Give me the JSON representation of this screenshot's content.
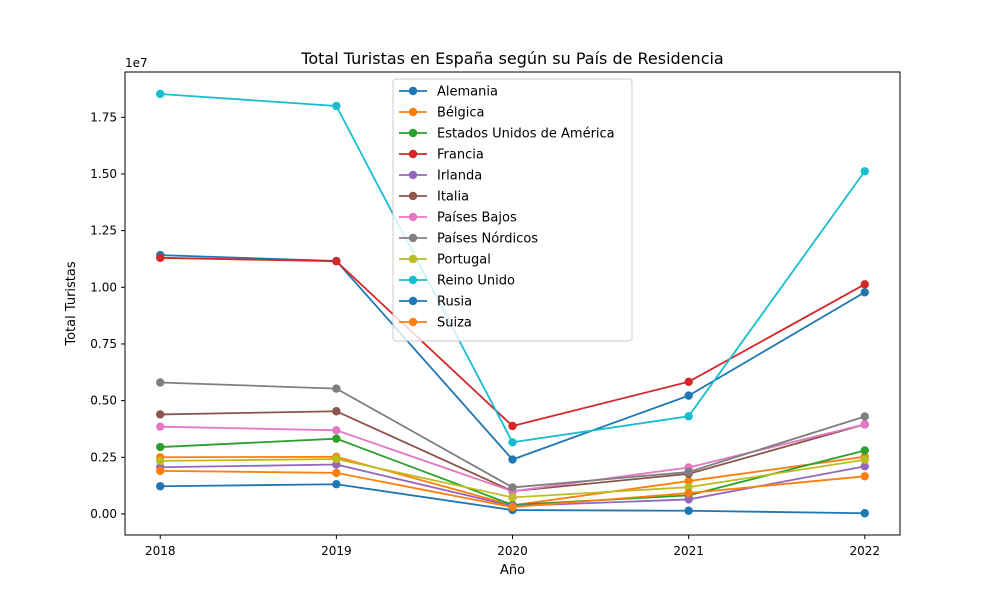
{
  "chart_data": {
    "type": "line",
    "title": "Total Turistas en España según su País de Residencia",
    "xlabel": "Año",
    "ylabel": "Total Turistas",
    "y_offset_label": "1e7",
    "x": [
      2018,
      2019,
      2020,
      2021,
      2022
    ],
    "x_tick_labels": [
      "2018",
      "2019",
      "2020",
      "2021",
      "2022"
    ],
    "y_ticks": [
      0,
      0.25,
      0.5,
      0.75,
      1.0,
      1.25,
      1.5,
      1.75
    ],
    "y_tick_labels": [
      "0.00",
      "0.25",
      "0.50",
      "0.75",
      "1.00",
      "1.25",
      "1.50",
      "1.75"
    ],
    "ylim": [
      -0.093,
      1.95
    ],
    "xlim": [
      2017.8,
      2022.2
    ],
    "y_unit_multiplier": 10000000,
    "grid": false,
    "legend_position": "top-center",
    "series": [
      {
        "name": "Alemania",
        "color": "#1f77b4",
        "values": [
          1.142,
          1.116,
          0.24,
          0.522,
          0.978
        ]
      },
      {
        "name": "Bélgica",
        "color": "#ff7f0e",
        "values": [
          0.25,
          0.252,
          0.038,
          0.145,
          0.252
        ]
      },
      {
        "name": "Estados Unidos de América",
        "color": "#2ca02c",
        "values": [
          0.295,
          0.332,
          0.04,
          0.082,
          0.28
        ]
      },
      {
        "name": "Francia",
        "color": "#d62728",
        "values": [
          1.13,
          1.115,
          0.388,
          0.583,
          1.013
        ]
      },
      {
        "name": "Irlanda",
        "color": "#9467bd",
        "values": [
          0.206,
          0.218,
          0.035,
          0.064,
          0.21
        ]
      },
      {
        "name": "Italia",
        "color": "#8c564b",
        "values": [
          0.439,
          0.453,
          0.1,
          0.177,
          0.395
        ]
      },
      {
        "name": "Países Bajos",
        "color": "#e377c2",
        "values": [
          0.385,
          0.369,
          0.1,
          0.205,
          0.395
        ]
      },
      {
        "name": "Países Nórdicos",
        "color": "#7f7f7f",
        "values": [
          0.58,
          0.553,
          0.117,
          0.185,
          0.43
        ]
      },
      {
        "name": "Portugal",
        "color": "#bcbd22",
        "values": [
          0.234,
          0.242,
          0.073,
          0.118,
          0.239
        ]
      },
      {
        "name": "Reino Unido",
        "color": "#17becf",
        "values": [
          1.853,
          1.8,
          0.316,
          0.431,
          1.512
        ]
      },
      {
        "name": "Rusia",
        "color": "#1f77b4",
        "values": [
          0.122,
          0.131,
          0.017,
          0.014,
          0.003
        ]
      },
      {
        "name": "Suiza",
        "color": "#ff7f0e",
        "values": [
          0.19,
          0.181,
          0.03,
          0.092,
          0.166
        ]
      }
    ]
  }
}
